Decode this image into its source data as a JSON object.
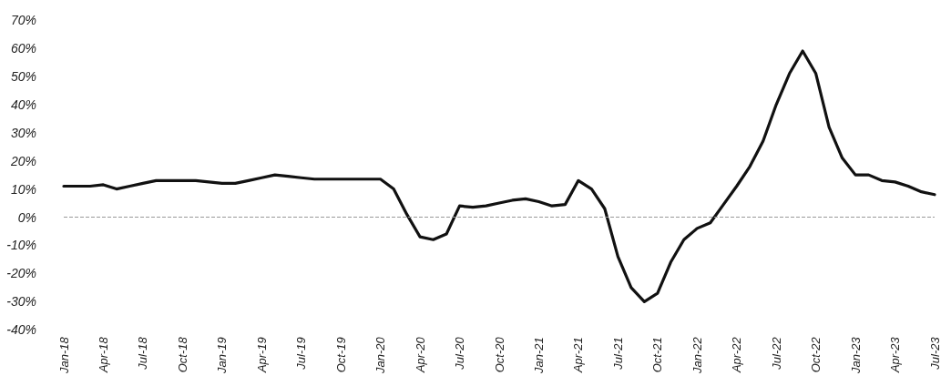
{
  "chart_data": {
    "type": "line",
    "categories": [
      "Jan-18",
      null,
      null,
      "Apr-18",
      null,
      null,
      "Jul-18",
      null,
      null,
      "Oct-18",
      null,
      null,
      "Jan-19",
      null,
      null,
      "Apr-19",
      null,
      null,
      "Jul-19",
      null,
      null,
      "Oct-19",
      null,
      null,
      "Jan-20",
      null,
      null,
      "Apr-20",
      null,
      null,
      "Jul-20",
      null,
      null,
      "Oct-20",
      null,
      null,
      "Jan-21",
      null,
      null,
      "Apr-21",
      null,
      null,
      "Jul-21",
      null,
      null,
      "Oct-21",
      null,
      null,
      "Jan-22",
      null,
      null,
      "Apr-22",
      null,
      null,
      "Jul-22",
      null,
      null,
      "Oct-22",
      null,
      null,
      "Jan-23",
      null,
      null,
      "Apr-23",
      null,
      null,
      "Jul-23"
    ],
    "series": [
      {
        "color": "#111111",
        "values": [
          11,
          11,
          11,
          11.5,
          10,
          11,
          12,
          13,
          13,
          13,
          13,
          12.5,
          12,
          12,
          13,
          14,
          15,
          14.5,
          14,
          13.5,
          13.5,
          13.5,
          13.5,
          13.5,
          13.5,
          10,
          1,
          -7,
          -8,
          -6,
          4,
          3.5,
          4,
          5,
          6,
          6.5,
          5.5,
          4,
          4.5,
          13,
          10,
          3,
          -14,
          -25,
          -30,
          -27,
          -16,
          -8,
          -4,
          -2,
          4.5,
          11,
          18,
          27,
          40,
          51,
          59,
          51,
          32,
          21,
          15,
          15,
          13,
          12.5,
          11,
          9,
          8
        ]
      }
    ],
    "ylim": [
      -40,
      70
    ],
    "yticks": [
      {
        "value": -40,
        "label": "-40%"
      },
      {
        "value": -30,
        "label": "-30%"
      },
      {
        "value": -20,
        "label": "-20%"
      },
      {
        "value": -10,
        "label": "-10%"
      },
      {
        "value": 0,
        "label": "0%"
      },
      {
        "value": 10,
        "label": "10%"
      },
      {
        "value": 20,
        "label": "20%"
      },
      {
        "value": 30,
        "label": "30%"
      },
      {
        "value": 40,
        "label": "40%"
      },
      {
        "value": 50,
        "label": "50%"
      },
      {
        "value": 60,
        "label": "60%"
      },
      {
        "value": 70,
        "label": "70%"
      }
    ],
    "ref_lines": [
      {
        "axis": "y",
        "value": 0,
        "color": "#999999",
        "line_style": "dashed"
      }
    ],
    "grid": false,
    "marker": "none",
    "line_style": "solid"
  }
}
